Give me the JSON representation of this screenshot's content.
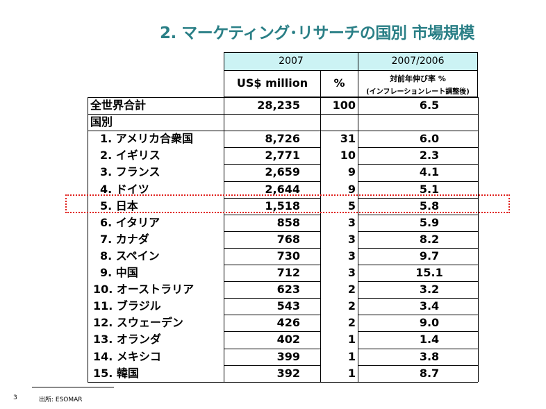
{
  "title": "2. マーケティング･リサーチの国別 市場規模",
  "header": {
    "year": "2007",
    "growth_year": "2007/2006",
    "col_usd": "US$ million",
    "col_pct": "%",
    "col_growth_line1": "対前年伸び率 %",
    "col_growth_line2": "(インフレーションレート調整後)"
  },
  "total": {
    "label": "全世界合計",
    "usd": "28,235",
    "pct": "100",
    "growth": "6.5"
  },
  "section_label": "国別",
  "rows": [
    {
      "label": "1. アメリカ合衆国",
      "usd": "8,726",
      "pct": "31",
      "growth": "6.0"
    },
    {
      "label": "2. イギリス",
      "usd": "2,771",
      "pct": "10",
      "growth": "2.3"
    },
    {
      "label": "3. フランス",
      "usd": "2,659",
      "pct": "9",
      "growth": "4.1"
    },
    {
      "label": "4. ドイツ",
      "usd": "2,644",
      "pct": "9",
      "growth": "5.1"
    },
    {
      "label": "5. 日本",
      "usd": "1,518",
      "pct": "5",
      "growth": "5.8"
    },
    {
      "label": "6. イタリア",
      "usd": "858",
      "pct": "3",
      "growth": "5.9"
    },
    {
      "label": "7. カナダ",
      "usd": "768",
      "pct": "3",
      "growth": "8.2"
    },
    {
      "label": "8. スペイン",
      "usd": "730",
      "pct": "3",
      "growth": "9.7"
    },
    {
      "label": "9. 中国",
      "usd": "712",
      "pct": "3",
      "growth": "15.1"
    },
    {
      "label": "10. オーストラリア",
      "usd": "623",
      "pct": "2",
      "growth": "3.2"
    },
    {
      "label": "11. ブラジル",
      "usd": "543",
      "pct": "2",
      "growth": "3.4"
    },
    {
      "label": "12. スウェーデン",
      "usd": "426",
      "pct": "2",
      "growth": "9.0"
    },
    {
      "label": "13. オランダ",
      "usd": "402",
      "pct": "1",
      "growth": "1.4"
    },
    {
      "label": "14. メキシコ",
      "usd": "399",
      "pct": "1",
      "growth": "3.8"
    },
    {
      "label": "15. 韓国",
      "usd": "392",
      "pct": "1",
      "growth": "8.7"
    }
  ],
  "page_number": "3",
  "source": "出所:  ESOMAR",
  "colors": {
    "title": "#2a7f86",
    "header_fill": "#ccf3f4",
    "highlight": "#e0201c"
  }
}
